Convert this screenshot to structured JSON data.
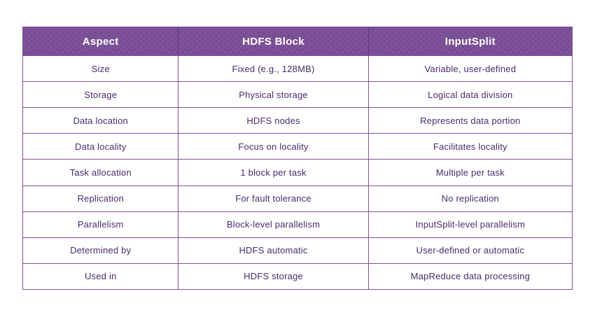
{
  "table": {
    "headers": [
      "Aspect",
      "HDFS Block",
      "InputSplit"
    ],
    "rows": [
      [
        "Size",
        "Fixed (e.g., 128MB)",
        "Variable, user-defined"
      ],
      [
        "Storage",
        "Physical storage",
        "Logical data division"
      ],
      [
        "Data location",
        "HDFS nodes",
        "Represents data portion"
      ],
      [
        "Data locality",
        "Focus on locality",
        "Facilitates locality"
      ],
      [
        "Task allocation",
        "1 block per task",
        "Multiple per task"
      ],
      [
        "Replication",
        "For fault tolerance",
        "No replication"
      ],
      [
        "Parallelism",
        "Block-level parallelism",
        "InputSplit-level parallelism"
      ],
      [
        "Determined by",
        "HDFS automatic",
        "User-defined or automatic"
      ],
      [
        "Used in",
        "HDFS storage",
        "MapReduce data processing"
      ]
    ],
    "colors": {
      "header_bg": "#7d5298",
      "header_text": "#ffffff",
      "cell_text": "#4b2a6b",
      "border": "#7d5298"
    }
  }
}
